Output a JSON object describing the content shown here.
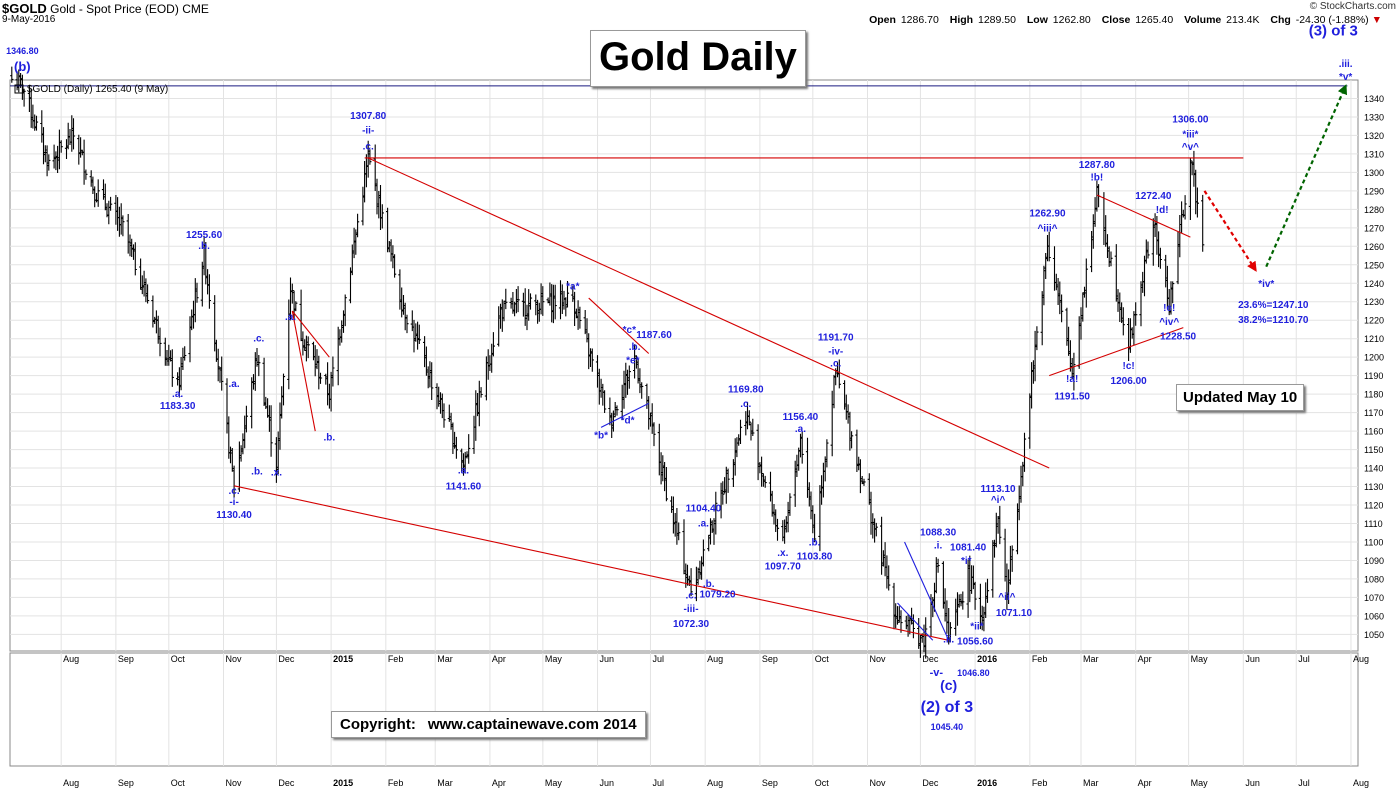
{
  "header": {
    "symbol": "$GOLD",
    "description": "Gold - Spot Price (EOD)",
    "exchange": "CME",
    "date": "9-May-2016",
    "brand": "© StockCharts.com",
    "open_label": "Open",
    "open": "1286.70",
    "high_label": "High",
    "high": "1289.50",
    "low_label": "Low",
    "low": "1262.80",
    "close_label": "Close",
    "close": "1265.40",
    "volume_label": "Volume",
    "volume": "213.4K",
    "chg_label": "Chg",
    "chg": "-24.30 (-1.88%)",
    "legend": "$GOLD (Daily) 1265.40 (9 May)"
  },
  "boxes": {
    "title": "Gold Daily",
    "updated": "Updated May 10",
    "copyright_label": "Copyright:",
    "copyright_url": "www.captainewave.com 2014"
  },
  "colors": {
    "price": "#000000",
    "trend": "#d40000",
    "wave": "#2020dd",
    "forecast_down": "#e00000",
    "forecast_up": "#006400"
  },
  "chart_data": {
    "type": "ohlc",
    "y_scale": "linear",
    "ylim": [
      1041,
      1350
    ],
    "yticks": [
      1050,
      1060,
      1070,
      1080,
      1090,
      1100,
      1110,
      1120,
      1130,
      1140,
      1150,
      1160,
      1170,
      1180,
      1190,
      1200,
      1210,
      1220,
      1230,
      1240,
      1250,
      1260,
      1270,
      1280,
      1290,
      1300,
      1310,
      1320,
      1330,
      1340
    ],
    "x_ticks": [
      "Aug",
      "Sep",
      "Oct",
      "Nov",
      "Dec",
      "2015",
      "Feb",
      "Mar",
      "Apr",
      "May",
      "Jun",
      "Jul",
      "Aug",
      "Sep",
      "Oct",
      "Nov",
      "Dec",
      "2016",
      "Feb",
      "Mar",
      "Apr",
      "May",
      "Jun",
      "Jul",
      "Aug"
    ],
    "x_tick_dates": [
      "2014-08-01",
      "2014-09-01",
      "2014-10-01",
      "2014-11-01",
      "2014-12-01",
      "2015-01-01",
      "2015-02-01",
      "2015-03-01",
      "2015-04-01",
      "2015-05-01",
      "2015-06-01",
      "2015-07-01",
      "2015-08-01",
      "2015-09-01",
      "2015-10-01",
      "2015-11-01",
      "2015-12-01",
      "2016-01-01",
      "2016-02-01",
      "2016-03-01",
      "2016-04-01",
      "2016-05-01",
      "2016-06-01",
      "2016-07-01",
      "2016-08-01"
    ],
    "x_range": [
      "2014-07-03",
      "2016-08-05"
    ],
    "price_path": [
      [
        "2014-07-10",
        1346.8
      ],
      [
        "2014-07-25",
        1305
      ],
      [
        "2014-08-08",
        1320
      ],
      [
        "2014-08-20",
        1290
      ],
      [
        "2014-09-05",
        1270
      ],
      [
        "2014-09-25",
        1215
      ],
      [
        "2014-10-06",
        1183.3
      ],
      [
        "2014-10-21",
        1255.6
      ],
      [
        "2014-11-07",
        1130.4
      ],
      [
        "2014-11-20",
        1200
      ],
      [
        "2014-12-01",
        1142
      ],
      [
        "2014-12-09",
        1238
      ],
      [
        "2014-12-15",
        1213
      ],
      [
        "2014-12-31",
        1180
      ],
      [
        "2015-01-22",
        1307.8
      ],
      [
        "2015-02-10",
        1230
      ],
      [
        "2015-03-17",
        1141.6
      ],
      [
        "2015-04-07",
        1225
      ],
      [
        "2015-05-18",
        1232
      ],
      [
        "2015-06-08",
        1165
      ],
      [
        "2015-06-22",
        1200
      ],
      [
        "2015-07-24",
        1072.3
      ],
      [
        "2015-08-24",
        1169.8
      ],
      [
        "2015-09-14",
        1097.7
      ],
      [
        "2015-09-24",
        1156.4
      ],
      [
        "2015-10-02",
        1103.8
      ],
      [
        "2015-10-14",
        1191.7
      ],
      [
        "2015-11-17",
        1061
      ],
      [
        "2015-12-03",
        1046.8
      ],
      [
        "2015-12-11",
        1088.3
      ],
      [
        "2015-12-17",
        1046.8
      ],
      [
        "2015-12-28",
        1081.4
      ],
      [
        "2016-01-05",
        1060
      ],
      [
        "2016-01-14",
        1113.1
      ],
      [
        "2016-01-19",
        1071.1
      ],
      [
        "2016-02-11",
        1262.9
      ],
      [
        "2016-02-25",
        1191.5
      ],
      [
        "2016-03-10",
        1287.8
      ],
      [
        "2016-03-28",
        1206
      ],
      [
        "2016-04-11",
        1272.4
      ],
      [
        "2016-04-20",
        1228.5
      ],
      [
        "2016-05-02",
        1306
      ],
      [
        "2016-05-09",
        1265.4
      ]
    ],
    "trendlines": [
      {
        "from": [
          "2014-11-07",
          1130.4
        ],
        "to": [
          "2015-12-17",
          1046.8
        ]
      },
      {
        "from": [
          "2015-01-22",
          1307.8
        ],
        "to": [
          "2016-02-12",
          1140
        ]
      },
      {
        "from": [
          "2015-01-20",
          1307.8
        ],
        "to": [
          "2016-06-01",
          1307.8
        ]
      },
      {
        "from": [
          "2016-03-10",
          1287.8
        ],
        "to": [
          "2016-05-02",
          1265
        ]
      },
      {
        "from": [
          "2016-02-12",
          1190
        ],
        "to": [
          "2016-04-28",
          1216
        ]
      },
      {
        "from": [
          "2014-12-10",
          1225
        ],
        "to": [
          "2014-12-23",
          1160
        ]
      },
      {
        "from": [
          "2014-12-10",
          1225
        ],
        "to": [
          "2014-12-31",
          1200
        ]
      },
      {
        "from": [
          "2015-05-27",
          1232
        ],
        "to": [
          "2015-06-30",
          1202
        ]
      },
      {
        "from": [
          "2015-06-03",
          1162
        ],
        "to": [
          "2015-06-30",
          1175
        ]
      },
      {
        "from": [
          "2015-11-22",
          1100
        ],
        "to": [
          "2015-12-17",
          1046.8
        ]
      },
      {
        "from": [
          "2015-11-18",
          1067
        ],
        "to": [
          "2015-12-08",
          1046.8
        ]
      }
    ],
    "resistance": {
      "y": 1346.8,
      "from": "2014-07-03",
      "to": "2016-07-30"
    },
    "forecast": [
      {
        "dir": "down",
        "from": [
          "2016-05-10",
          1290
        ],
        "to": [
          "2016-06-08",
          1247.1
        ]
      },
      {
        "dir": "up",
        "from": [
          "2016-06-14",
          1249
        ],
        "to": [
          "2016-07-29",
          1346.8
        ]
      }
    ],
    "annotations": [
      {
        "t": "1346.80",
        "d": "2014-07-10",
        "y": 1364,
        "size": 9
      },
      {
        "t": "(b)",
        "d": "2014-07-10",
        "y": 1355,
        "size": 13
      },
      {
        "t": ".a.",
        "d": "2014-10-06",
        "y": 1178.5
      },
      {
        "t": "1183.30",
        "d": "2014-10-06",
        "y": 1172
      },
      {
        "t": "1255.60",
        "d": "2014-10-21",
        "y": 1264.5
      },
      {
        "t": ".b.",
        "d": "2014-10-21",
        "y": 1258.5
      },
      {
        "t": ".a.",
        "d": "2014-11-07",
        "y": 1184
      },
      {
        "t": ".c.",
        "d": "2014-11-07",
        "y": 1126
      },
      {
        "t": "-i-",
        "d": "2014-11-07",
        "y": 1120
      },
      {
        "t": "1130.40",
        "d": "2014-11-07",
        "y": 1113
      },
      {
        "t": ".b.",
        "d": "2014-11-20",
        "y": 1136.5
      },
      {
        "t": ".c.",
        "d": "2014-11-21",
        "y": 1208.5
      },
      {
        "t": ".x.",
        "d": "2014-12-01",
        "y": 1136
      },
      {
        "t": ".a.",
        "d": "2014-12-09",
        "y": 1220
      },
      {
        "t": ".b.",
        "d": "2014-12-31",
        "y": 1155
      },
      {
        "t": "1307.80",
        "d": "2015-01-22",
        "y": 1329
      },
      {
        "t": "-ii-",
        "d": "2015-01-22",
        "y": 1321
      },
      {
        "t": ".c.",
        "d": "2015-01-22",
        "y": 1312.5
      },
      {
        "t": ".a.",
        "d": "2015-03-17",
        "y": 1137
      },
      {
        "t": "1141.60",
        "d": "2015-03-17",
        "y": 1128.5
      },
      {
        "t": "*a*",
        "d": "2015-05-18",
        "y": 1236.5
      },
      {
        "t": "*c*",
        "d": "2015-06-19",
        "y": 1213
      },
      {
        "t": "1187.60",
        "d": "2015-07-03",
        "y": 1210.5
      },
      {
        "t": ".b.",
        "d": "2015-06-22",
        "y": 1204
      },
      {
        "t": "*e*",
        "d": "2015-06-21",
        "y": 1196.5
      },
      {
        "t": "*d*",
        "d": "2015-06-18",
        "y": 1164
      },
      {
        "t": "*b*",
        "d": "2015-06-03",
        "y": 1156
      },
      {
        "t": "1104.40",
        "d": "2015-07-31",
        "y": 1116.5
      },
      {
        "t": ".a.",
        "d": "2015-07-31",
        "y": 1108.5
      },
      {
        "t": ".b.",
        "d": "2015-08-03",
        "y": 1075.5
      },
      {
        "t": "1079.20",
        "d": "2015-08-08",
        "y": 1070
      },
      {
        "t": ".c.",
        "d": "2015-07-24",
        "y": 1069.5
      },
      {
        "t": "-iii-",
        "d": "2015-07-24",
        "y": 1062
      },
      {
        "t": "1072.30",
        "d": "2015-07-24",
        "y": 1054
      },
      {
        "t": "1169.80",
        "d": "2015-08-24",
        "y": 1181
      },
      {
        "t": ".c.",
        "d": "2015-08-24",
        "y": 1173
      },
      {
        "t": ".x.",
        "d": "2015-09-14",
        "y": 1092.5
      },
      {
        "t": "1097.70",
        "d": "2015-09-14",
        "y": 1085
      },
      {
        "t": "1156.40",
        "d": "2015-09-24",
        "y": 1166
      },
      {
        "t": ".a.",
        "d": "2015-09-24",
        "y": 1159.5
      },
      {
        "t": ".b.",
        "d": "2015-10-02",
        "y": 1098
      },
      {
        "t": "1103.80",
        "d": "2015-10-02",
        "y": 1090.5
      },
      {
        "t": "1191.70",
        "d": "2015-10-14",
        "y": 1209
      },
      {
        "t": "-iv-",
        "d": "2015-10-14",
        "y": 1201.5
      },
      {
        "t": ".c.",
        "d": "2015-10-14",
        "y": 1195
      },
      {
        "t": "1088.30",
        "d": "2015-12-11",
        "y": 1103.5
      },
      {
        "t": ".i.",
        "d": "2015-12-11",
        "y": 1096.5
      },
      {
        "t": "1081.40",
        "d": "2015-12-28",
        "y": 1095.5
      },
      {
        "t": "*i*",
        "d": "2015-12-27",
        "y": 1088
      },
      {
        "t": "1113.10",
        "d": "2016-01-14",
        "y": 1127
      },
      {
        "t": "^i^",
        "d": "2016-01-14",
        "y": 1121
      },
      {
        "t": "^ii^",
        "d": "2016-01-19",
        "y": 1068.5
      },
      {
        "t": "1071.10",
        "d": "2016-01-23",
        "y": 1060
      },
      {
        "t": "*ii*",
        "d": "2016-01-02",
        "y": 1052.5
      },
      {
        "t": "1056.60",
        "d": "2016-01-01",
        "y": 1044.5
      },
      {
        "t": ".ii.",
        "d": "2015-12-17",
        "y": 1045.5
      },
      {
        "t": "1262.90",
        "d": "2016-02-11",
        "y": 1276
      },
      {
        "t": "^iii^",
        "d": "2016-02-11",
        "y": 1268
      },
      {
        "t": "!a!",
        "d": "2016-02-25",
        "y": 1186.5
      },
      {
        "t": "1191.50",
        "d": "2016-02-25",
        "y": 1177
      },
      {
        "t": "1287.80",
        "d": "2016-03-10",
        "y": 1302.5
      },
      {
        "t": "!b!",
        "d": "2016-03-10",
        "y": 1295.5
      },
      {
        "t": "!c!",
        "d": "2016-03-28",
        "y": 1193.5
      },
      {
        "t": "1206.00",
        "d": "2016-03-28",
        "y": 1185.5
      },
      {
        "t": "1272.40",
        "d": "2016-04-11",
        "y": 1285.5
      },
      {
        "t": "!d!",
        "d": "2016-04-16",
        "y": 1278
      },
      {
        "t": "!e!",
        "d": "2016-04-20",
        "y": 1225
      },
      {
        "t": "^iv^",
        "d": "2016-04-20",
        "y": 1217.5
      },
      {
        "t": "1228.50",
        "d": "2016-04-25",
        "y": 1209.5
      },
      {
        "t": "1306.00",
        "d": "2016-05-02",
        "y": 1327
      },
      {
        "t": "*iii*",
        "d": "2016-05-02",
        "y": 1319
      },
      {
        "t": "^v^",
        "d": "2016-05-02",
        "y": 1312
      },
      {
        "t": "*iv*",
        "d": "2016-06-14",
        "y": 1238
      },
      {
        "t": "23.6%=1247.10",
        "d": "2016-06-18",
        "y": 1226.5
      },
      {
        "t": "38.2%=1210.70",
        "d": "2016-06-18",
        "y": 1218.5
      },
      {
        "t": ".iii.",
        "d": "2016-07-29",
        "y": 1357
      },
      {
        "t": "*v*",
        "d": "2016-07-29",
        "y": 1350
      },
      {
        "t": "(3) of 3",
        "d": "2016-07-22",
        "y": 1374,
        "size": 15
      }
    ],
    "below_axis_labels": [
      {
        "t": "-v-",
        "d": "2015-12-10",
        "px": 676,
        "size": 11
      },
      {
        "t": "1046.80",
        "d": "2015-12-31",
        "px": 676,
        "size": 9
      },
      {
        "t": "(c)",
        "d": "2015-12-17",
        "px": 690,
        "size": 14
      },
      {
        "t": "(2) of 3",
        "d": "2015-12-16",
        "px": 712,
        "size": 16
      },
      {
        "t": "1045.40",
        "d": "2015-12-16",
        "px": 730,
        "size": 9
      }
    ]
  }
}
